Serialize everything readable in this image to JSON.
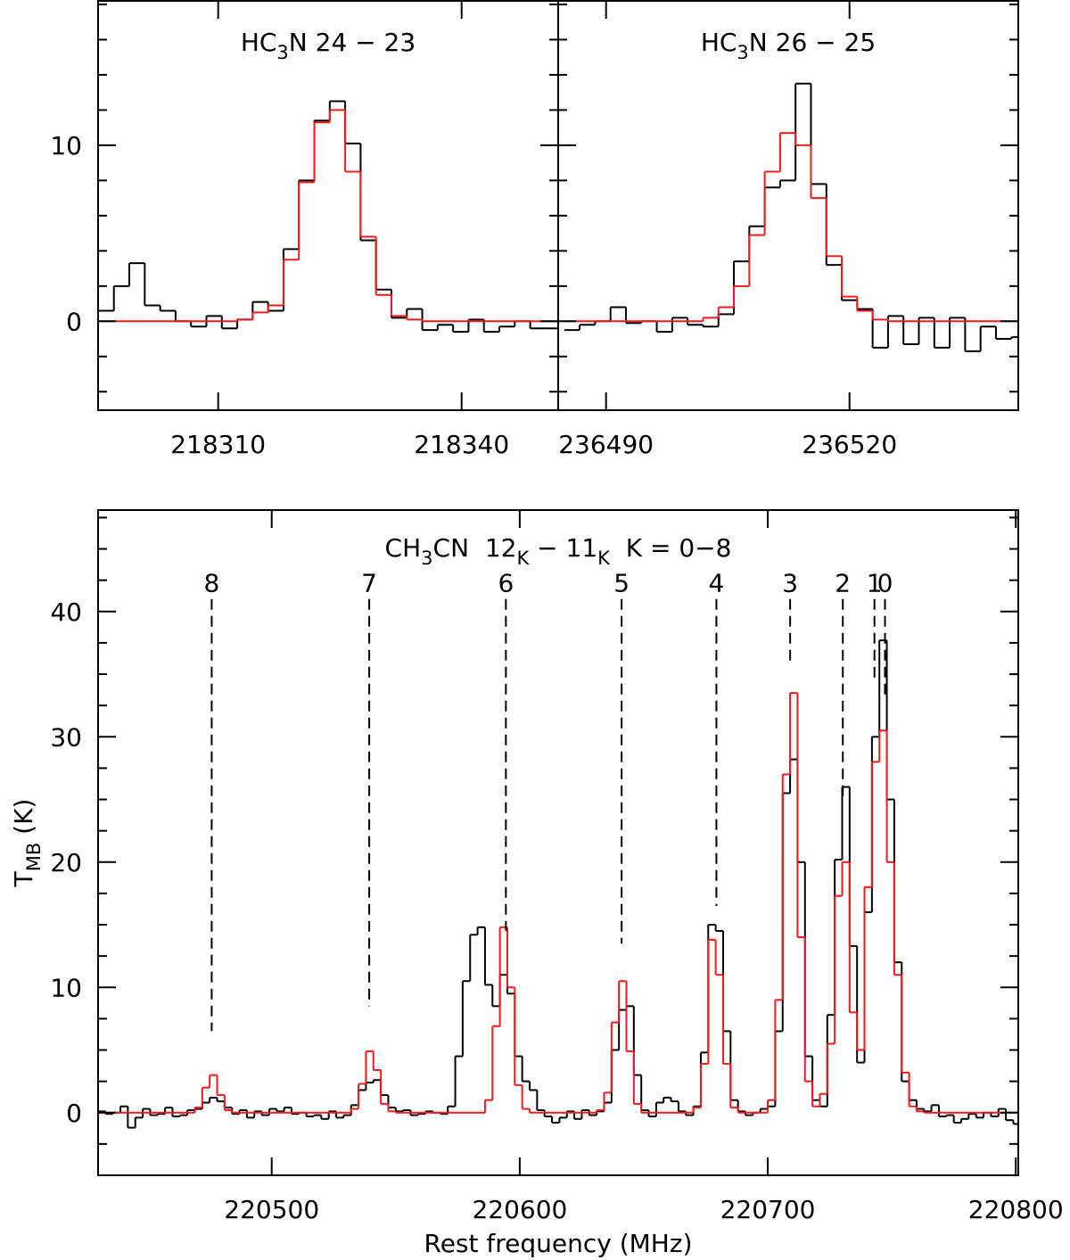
{
  "chart_data": [
    {
      "type": "step",
      "title": [
        {
          "text": "HC"
        },
        {
          "text": "3",
          "sub": true
        },
        {
          "text": "N 24 − 23"
        }
      ],
      "xlim": [
        218295.2,
        218351.9
      ],
      "xticks": [
        218310,
        218340
      ],
      "ylim": [
        -5.05,
        18.2
      ],
      "yticks": [
        0,
        10
      ],
      "ytick_marks": [
        -4,
        -2,
        2,
        4,
        6,
        8,
        12,
        14,
        16,
        18
      ],
      "x": [
        218296.2,
        218298.1,
        218300,
        218301.9,
        218303.8,
        218305.7,
        218307.6,
        218309.5,
        218311.4,
        218313.3,
        218315.2,
        218317.1,
        218319,
        218320.9,
        218322.8,
        218324.7,
        218326.6,
        218328.5,
        218330.4,
        218332.3,
        218334.2,
        218336.1,
        218338,
        218339.9,
        218341.8,
        218343.7,
        218345.6,
        218347.5,
        218349.4,
        218351.3
      ],
      "series": [
        {
          "color": "#000000",
          "values": [
            0.6,
            2.0,
            3.3,
            0.9,
            0.6,
            0,
            -0.3,
            0.3,
            -0.4,
            0.1,
            1.1,
            0.6,
            4.1,
            8.0,
            11.4,
            12.5,
            10.1,
            4.6,
            1.8,
            0.2,
            0.7,
            -0.5,
            -0.2,
            -0.6,
            0.1,
            -0.6,
            -0.3,
            0.0,
            -0.4,
            -0.4
          ]
        },
        {
          "color": "#ee1c1c",
          "values": [
            0,
            0,
            0,
            0,
            0,
            0,
            0,
            0,
            0,
            0.1,
            0.5,
            0.9,
            3.5,
            7.9,
            11.3,
            12.0,
            8.5,
            4.8,
            1.5,
            0.3,
            0.1,
            0,
            0,
            0,
            0,
            0,
            0,
            0,
            0,
            0
          ]
        }
      ]
    },
    {
      "type": "step",
      "title": [
        {
          "text": "HC"
        },
        {
          "text": "3",
          "sub": true
        },
        {
          "text": "N 26 − 25"
        }
      ],
      "xlim": [
        236484.1,
        236540.8
      ],
      "xticks": [
        236490,
        236520
      ],
      "ylim": [
        -5.05,
        18.2
      ],
      "ymajor_marks": [
        0,
        10
      ],
      "ytick_marks": [
        -4,
        -2,
        2,
        4,
        6,
        8,
        12,
        14,
        16,
        18
      ],
      "x": [
        236485.8,
        236487.7,
        236489.6,
        236491.5,
        236493.4,
        236495.3,
        236497.2,
        236499.1,
        236501,
        236502.9,
        236504.8,
        236506.7,
        236508.6,
        236510.5,
        236512.4,
        236514.3,
        236516.2,
        236518.1,
        236520,
        236521.9,
        236523.8,
        236525.7,
        236527.6,
        236529.5,
        236531.4,
        236533.3,
        236535.2,
        236537.1,
        236539,
        236540.9
      ],
      "series": [
        {
          "color": "#000000",
          "values": [
            -0.5,
            -0.2,
            0.0,
            0.8,
            -0.1,
            0.0,
            -0.6,
            0.2,
            -0.2,
            -0.3,
            0.4,
            3.4,
            5.4,
            7.6,
            8.0,
            13.5,
            7.8,
            3.2,
            1.2,
            0.7,
            -1.5,
            0.3,
            -1.3,
            0.2,
            -1.5,
            0.2,
            -1.7,
            -0.3,
            -1.0,
            -0.9
          ]
        },
        {
          "color": "#ee1c1c",
          "values": [
            0,
            0,
            0,
            0,
            0,
            0,
            0,
            0,
            0,
            0.2,
            0.8,
            2.0,
            4.9,
            8.5,
            10.7,
            10.0,
            7.0,
            3.7,
            1.4,
            0.6,
            0.1,
            0,
            0,
            0,
            0,
            0,
            0,
            0,
            0,
            0
          ]
        }
      ]
    },
    {
      "type": "step",
      "title": [
        {
          "text": "CH"
        },
        {
          "text": "3",
          "sub": true
        },
        {
          "text": "CN  12"
        },
        {
          "text": "K",
          "sub": true
        },
        {
          "text": " − 11"
        },
        {
          "text": "K",
          "sub": true
        },
        {
          "text": "  K = 0−8"
        }
      ],
      "xlabel": "Rest frequency (MHz)",
      "ylabel": [
        {
          "text": "T"
        },
        {
          "text": "MB",
          "sub": true
        },
        {
          "text": " (K)"
        }
      ],
      "xlim": [
        220430,
        220801
      ],
      "xticks": [
        220500,
        220600,
        220700,
        220800
      ],
      "ylim": [
        -5,
        48.1
      ],
      "yticks": [
        0,
        10,
        20,
        30,
        40
      ],
      "ytick_marks": [
        -2.5,
        2.5,
        5,
        7.5,
        12.5,
        15,
        17.5,
        22.5,
        25,
        27.5,
        32.5,
        35,
        37.5,
        42.5,
        45,
        47.5
      ],
      "line_markers": [
        {
          "label": "8",
          "x": 220475.81,
          "ymin": 6.5,
          "ymax": 41
        },
        {
          "label": "7",
          "x": 220539.32,
          "ymin": 8.5,
          "ymax": 41
        },
        {
          "label": "6",
          "x": 220594.42,
          "ymin": 14.5,
          "ymax": 41
        },
        {
          "label": "5",
          "x": 220641.08,
          "ymin": 13.5,
          "ymax": 41
        },
        {
          "label": "4",
          "x": 220679.29,
          "ymin": 16.5,
          "ymax": 41
        },
        {
          "label": "3",
          "x": 220709.02,
          "ymin": 36,
          "ymax": 41
        },
        {
          "label": "2",
          "x": 220730.26,
          "ymin": 25,
          "ymax": 41
        },
        {
          "label": "1",
          "x": 220743.01,
          "ymin": 34.5,
          "ymax": 41
        },
        {
          "label": "0",
          "x": 220747.26,
          "ymin": 33,
          "ymax": 41
        }
      ],
      "x": [
        220431.5,
        220434.5,
        220437.5,
        220440.5,
        220443.5,
        220446.5,
        220449.5,
        220452.5,
        220455.5,
        220458.5,
        220461.5,
        220464.5,
        220467.5,
        220470.5,
        220473.5,
        220476.5,
        220479.5,
        220482.5,
        220485.5,
        220488.5,
        220491.5,
        220494.5,
        220497.5,
        220500.5,
        220503.5,
        220506.5,
        220509.5,
        220512.5,
        220515.5,
        220518.5,
        220521.5,
        220524.5,
        220527.5,
        220530.5,
        220533.5,
        220536.5,
        220539.5,
        220542.5,
        220545.5,
        220548.5,
        220551.5,
        220554.5,
        220557.5,
        220560.5,
        220563.5,
        220566.5,
        220569.5,
        220572.5,
        220575.5,
        220578.5,
        220581.5,
        220584.5,
        220587.5,
        220590.5,
        220593.5,
        220596.5,
        220599.5,
        220602.5,
        220605.5,
        220608.5,
        220611.5,
        220614.5,
        220617.5,
        220620.5,
        220623.5,
        220626.5,
        220629.5,
        220632.5,
        220635.5,
        220638.5,
        220641.5,
        220644.5,
        220647.5,
        220650.5,
        220653.5,
        220656.5,
        220659.5,
        220662.5,
        220665.5,
        220668.5,
        220671.5,
        220674.5,
        220677.5,
        220680.5,
        220683.5,
        220686.5,
        220689.5,
        220692.5,
        220695.5,
        220698.5,
        220701.5,
        220704.5,
        220707.5,
        220710.5,
        220713.5,
        220716.5,
        220719.5,
        220722.5,
        220725.5,
        220728.5,
        220731.5,
        220734.5,
        220737.5,
        220740.5,
        220743.5,
        220746.5,
        220749.5,
        220752.5,
        220755.5,
        220758.5,
        220761.5,
        220764.5,
        220767.5,
        220770.5,
        220773.5,
        220776.5,
        220779.5,
        220782.5,
        220785.5,
        220788.5,
        220791.5,
        220794.5,
        220797.5,
        220800.5
      ],
      "series": [
        {
          "color": "#000000",
          "values": [
            0.1,
            -0.1,
            0.0,
            0.5,
            -1.2,
            -0.4,
            0.3,
            -0.2,
            -0.1,
            0.4,
            -0.3,
            -0.2,
            0.2,
            0.3,
            0.8,
            1.2,
            0.9,
            0.4,
            -0.1,
            0.2,
            -0.4,
            0.1,
            -0.2,
            0.3,
            0.1,
            0.4,
            -0.1,
            0.0,
            -0.3,
            -0.2,
            -0.5,
            0.1,
            -0.4,
            -0.2,
            0.6,
            1.8,
            2.4,
            2.6,
            1.4,
            0.4,
            0.1,
            0.2,
            -0.2,
            -0.1,
            0.1,
            0.0,
            -0.1,
            0.5,
            4.5,
            10.5,
            14.2,
            14.8,
            10.2,
            8.5,
            11.0,
            9.5,
            4.5,
            2.5,
            1.8,
            0.2,
            -0.3,
            -0.8,
            -0.4,
            0.1,
            -0.5,
            0.2,
            -0.2,
            0.1,
            0.8,
            5.0,
            8.2,
            8.5,
            3.0,
            0.2,
            -0.3,
            0.8,
            1.2,
            0.9,
            0.1,
            -0.2,
            0.5,
            4.8,
            15.0,
            14.5,
            6.5,
            1.0,
            0.1,
            -0.2,
            0.0,
            0.3,
            0.5,
            6.5,
            25.5,
            28.2,
            20.0,
            4.5,
            1.0,
            0.5,
            7.8,
            20.2,
            26.0,
            13.3,
            4.0,
            16.0,
            30.0,
            37.7,
            25.0,
            12.0,
            2.5,
            1.0,
            0.3,
            0.1,
            0.6,
            -0.3,
            -0.2,
            -0.8,
            -0.5,
            -0.1,
            -0.4,
            0.0,
            -0.3,
            0.3,
            -0.6,
            -0.9
          ]
        },
        {
          "color": "#ee1c1c",
          "values": [
            0,
            0,
            0,
            0,
            0,
            0,
            0,
            0,
            0,
            0,
            0,
            0,
            0,
            0.4,
            2.0,
            3.0,
            1.4,
            0.2,
            0,
            0,
            0,
            0,
            0,
            0,
            0,
            0,
            0,
            0,
            0,
            0,
            0,
            0,
            0,
            0,
            0.3,
            2.3,
            4.9,
            3.4,
            0.7,
            0.1,
            0,
            0,
            0,
            0,
            0,
            0,
            0,
            0,
            0,
            0,
            0,
            0,
            1.0,
            6.9,
            14.8,
            10.0,
            2.2,
            0.3,
            0,
            0,
            0,
            0,
            0,
            0,
            0,
            0,
            0,
            0.2,
            1.6,
            7.2,
            10.5,
            4.9,
            0.7,
            0,
            0,
            0,
            0,
            0,
            0,
            0,
            0.4,
            3.9,
            13.8,
            11.0,
            3.9,
            0.4,
            0,
            0,
            0,
            0,
            1.0,
            9.0,
            27.0,
            33.5,
            14.0,
            2.5,
            0.5,
            1.5,
            5.5,
            17.3,
            20.0,
            8.0,
            5.0,
            18.0,
            28.0,
            30.5,
            20.0,
            11.0,
            3.2,
            0.5,
            0.1,
            0,
            0,
            0,
            0,
            0,
            0,
            0,
            0,
            0,
            0,
            0,
            0,
            0
          ]
        }
      ]
    }
  ]
}
